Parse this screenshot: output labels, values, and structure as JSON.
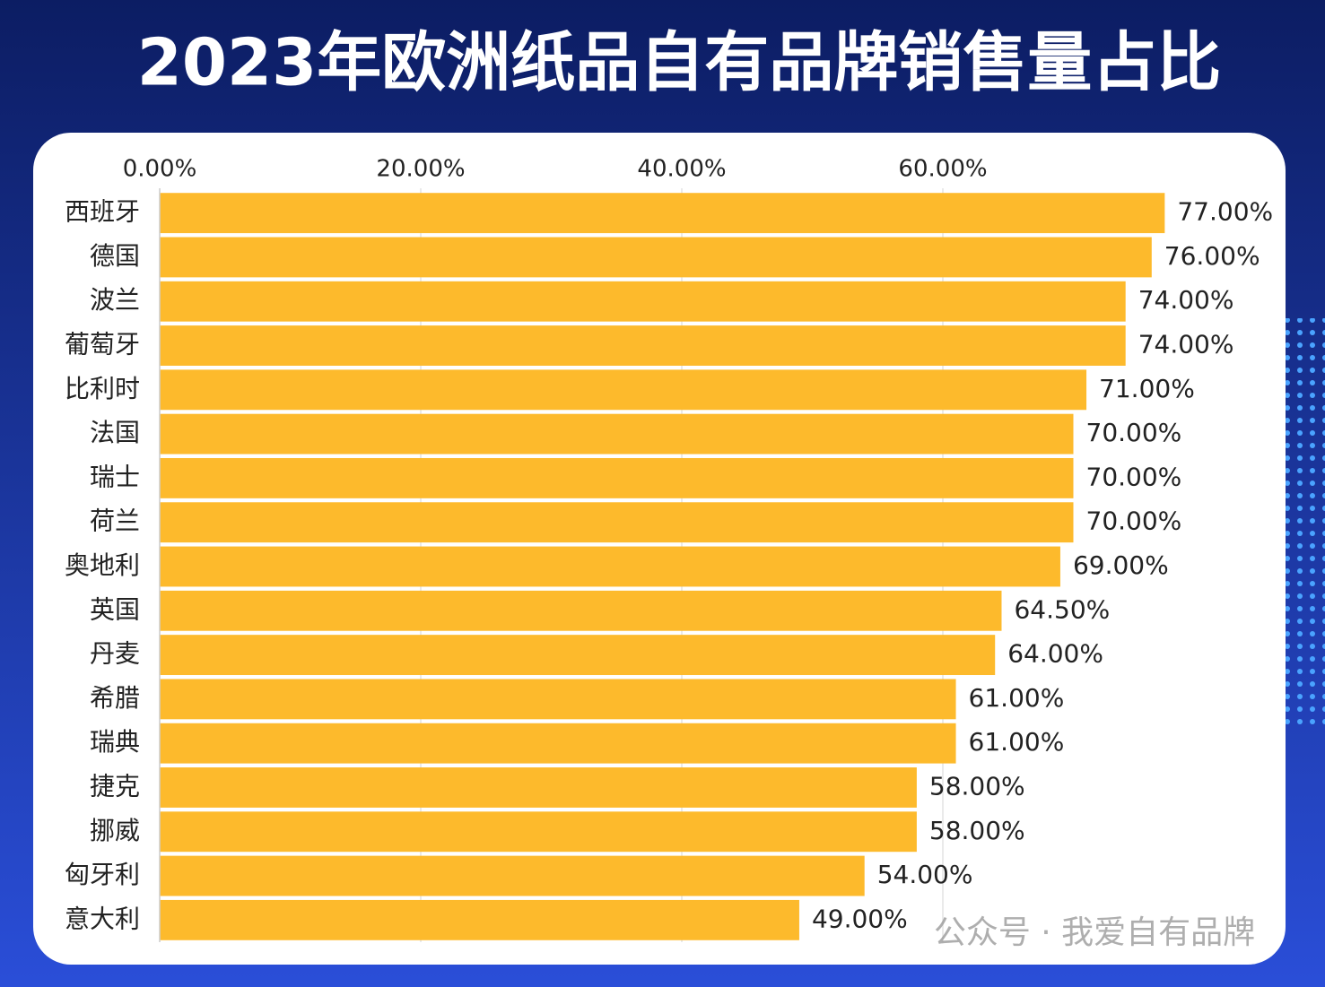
{
  "chart_data": {
    "type": "bar",
    "orientation": "horizontal",
    "title": "2023年欧洲纸品自有品牌销售量占比",
    "categories": [
      "西班牙",
      "德国",
      "波兰",
      "葡萄牙",
      "比利时",
      "法国",
      "瑞士",
      "荷兰",
      "奥地利",
      "英国",
      "丹麦",
      "希腊",
      "瑞典",
      "捷克",
      "挪威",
      "匈牙利",
      "意大利"
    ],
    "values": [
      77,
      76,
      74,
      74,
      71,
      70,
      70,
      70,
      69,
      64.5,
      64,
      61,
      61,
      58,
      58,
      54,
      49
    ],
    "value_labels": [
      "77.00%",
      "76.00%",
      "74.00%",
      "74.00%",
      "71.00%",
      "70.00%",
      "70.00%",
      "70.00%",
      "69.00%",
      "64.50%",
      "64.00%",
      "61.00%",
      "61.00%",
      "58.00%",
      "58.00%",
      "54.00%",
      "49.00%"
    ],
    "color": "#fdba2c",
    "xlim": [
      0,
      85
    ],
    "xticks": [
      {
        "value": 0,
        "label": "0.00%"
      },
      {
        "value": 20,
        "label": "20.00%"
      },
      {
        "value": 40,
        "label": "40.00%"
      },
      {
        "value": 60,
        "label": "60.00%"
      }
    ],
    "grid": true
  },
  "watermark": "公众号 · 我爱自有品牌"
}
